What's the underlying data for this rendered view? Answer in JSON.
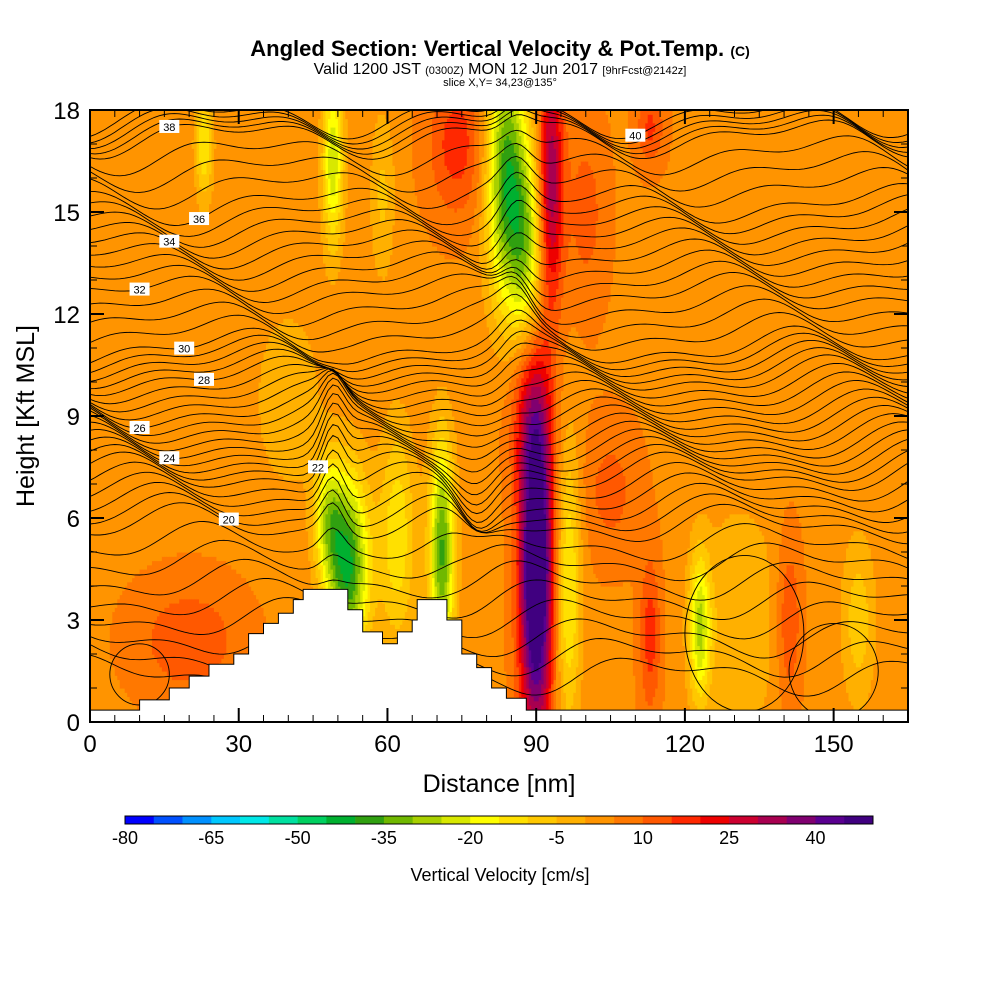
{
  "title": {
    "main": "Angled Section: Vertical Velocity & Pot.Temp.",
    "tag": "(C)",
    "valid": "Valid 1200 JST",
    "zulu": "(0300Z)",
    "date": "MON 12 Jun 2017",
    "fcst": "[9hrFcst@2142z]",
    "slice": "slice X,Y= 34,23@135°"
  },
  "chart_data": {
    "type": "heatmap",
    "xlabel": "Distance [nm]",
    "ylabel": "Height [Kft MSL]",
    "xlim": [
      0,
      165
    ],
    "ylim": [
      0,
      18
    ],
    "xticks": [
      0,
      30,
      60,
      90,
      120,
      150
    ],
    "yticks": [
      0,
      3,
      6,
      9,
      12,
      15,
      18
    ],
    "colorbar": {
      "label": "Vertical Velocity [cm/s]",
      "min": -80,
      "max": 50,
      "step": 5,
      "tick_labels": [
        -80,
        -65,
        -50,
        -35,
        -20,
        -5,
        10,
        25,
        40
      ],
      "colors": [
        "#0000ff",
        "#0050ff",
        "#0090ff",
        "#00c8ff",
        "#00e8e8",
        "#00e0a0",
        "#00d060",
        "#00b030",
        "#30a010",
        "#70b800",
        "#a8d000",
        "#d8e800",
        "#ffff00",
        "#ffe000",
        "#ffc800",
        "#ffb000",
        "#ff9400",
        "#ff7800",
        "#ff5800",
        "#ff2800",
        "#ee0000",
        "#cc0030",
        "#a80050",
        "#800070",
        "#5a0090",
        "#400080"
      ]
    },
    "w_features": [
      {
        "x": 90,
        "y": 4.5,
        "sx": 2.3,
        "sy": 3.4,
        "w": 60
      },
      {
        "x": 89,
        "y": 9.0,
        "sx": 3.0,
        "sy": 1.5,
        "w": 14
      },
      {
        "x": 96.5,
        "y": 4.0,
        "sx": 1.8,
        "sy": 3.0,
        "w": -20
      },
      {
        "x": 52,
        "y": 4.6,
        "sx": 3.0,
        "sy": 1.9,
        "w": -45
      },
      {
        "x": 48,
        "y": 6.0,
        "sx": 2.0,
        "sy": 1.2,
        "w": -22
      },
      {
        "x": 62,
        "y": 5.5,
        "sx": 2.6,
        "sy": 2.3,
        "w": -18
      },
      {
        "x": 71,
        "y": 5.0,
        "sx": 1.8,
        "sy": 2.3,
        "w": -40
      },
      {
        "x": 84,
        "y": 16.0,
        "sx": 2.8,
        "sy": 2.6,
        "w": -42
      },
      {
        "x": 88,
        "y": 14.0,
        "sx": 2.3,
        "sy": 2.0,
        "w": -26
      },
      {
        "x": 93,
        "y": 16.0,
        "sx": 1.7,
        "sy": 2.6,
        "w": 30
      },
      {
        "x": 49,
        "y": 16.5,
        "sx": 1.5,
        "sy": 1.8,
        "w": -28
      },
      {
        "x": 59,
        "y": 15.5,
        "sx": 1.8,
        "sy": 1.8,
        "w": -10
      },
      {
        "x": 23,
        "y": 17.0,
        "sx": 1.3,
        "sy": 1.2,
        "w": -18
      },
      {
        "x": 74,
        "y": 17.0,
        "sx": 4.0,
        "sy": 1.5,
        "w": 14
      },
      {
        "x": 113,
        "y": 17.5,
        "sx": 2.0,
        "sy": 0.8,
        "w": 12
      },
      {
        "x": 20,
        "y": 2.4,
        "sx": 7.5,
        "sy": 1.2,
        "w": 10
      },
      {
        "x": 113,
        "y": 2.6,
        "sx": 1.5,
        "sy": 1.6,
        "w": 14
      },
      {
        "x": 123,
        "y": 2.8,
        "sx": 1.5,
        "sy": 1.5,
        "w": -28
      },
      {
        "x": 131,
        "y": 3.0,
        "sx": 6.0,
        "sy": 2.5,
        "w": -9
      },
      {
        "x": 141,
        "y": 3.0,
        "sx": 1.8,
        "sy": 1.8,
        "w": 12
      },
      {
        "x": 155,
        "y": 3.0,
        "sx": 2.5,
        "sy": 1.8,
        "w": -12
      },
      {
        "x": 40,
        "y": 9.5,
        "sx": 5.0,
        "sy": 2.0,
        "w": -8
      },
      {
        "x": 105,
        "y": 6.8,
        "sx": 4.0,
        "sy": 1.4,
        "w": 8
      },
      {
        "x": 100,
        "y": 15.0,
        "sx": 3.0,
        "sy": 2.0,
        "w": 8
      }
    ],
    "theta_contours": [
      {
        "value": 20,
        "label_x": 28,
        "base": 6.1
      },
      {
        "value": 22,
        "label_x": 46,
        "base": 7.3
      },
      {
        "value": 24,
        "label_x": 16,
        "base": 8.2
      },
      {
        "value": 26,
        "label_x": 10,
        "base": 9.15
      },
      {
        "value": 28,
        "label_x": 23,
        "base": 10.15
      },
      {
        "value": 30,
        "label_x": 19,
        "base": 11.0
      },
      {
        "value": 32,
        "label_x": 10,
        "base": 12.6
      },
      {
        "value": 34,
        "label_x": 16,
        "base": 13.95
      },
      {
        "value": 36,
        "label_x": 22,
        "base": 15.25
      },
      {
        "value": 38,
        "label_x": 16,
        "base": 17.2
      },
      {
        "value": 40,
        "label_x": 110,
        "base": 17.8
      }
    ],
    "terrain": [
      [
        0,
        0.35
      ],
      [
        10,
        0.35
      ],
      [
        10,
        0.65
      ],
      [
        16,
        0.65
      ],
      [
        16,
        1.0
      ],
      [
        20,
        1.0
      ],
      [
        20,
        1.35
      ],
      [
        24,
        1.35
      ],
      [
        24,
        1.7
      ],
      [
        29,
        1.7
      ],
      [
        29,
        2.0
      ],
      [
        32,
        2.0
      ],
      [
        32,
        2.6
      ],
      [
        35,
        2.6
      ],
      [
        35,
        2.9
      ],
      [
        38,
        2.9
      ],
      [
        38,
        3.2
      ],
      [
        41,
        3.2
      ],
      [
        41,
        3.6
      ],
      [
        43,
        3.6
      ],
      [
        43,
        3.9
      ],
      [
        52,
        3.9
      ],
      [
        52,
        3.3
      ],
      [
        55,
        3.3
      ],
      [
        55,
        2.65
      ],
      [
        59,
        2.65
      ],
      [
        59,
        2.3
      ],
      [
        62,
        2.3
      ],
      [
        62,
        2.65
      ],
      [
        65,
        2.65
      ],
      [
        65,
        3.0
      ],
      [
        66,
        3.0
      ],
      [
        66,
        3.6
      ],
      [
        72,
        3.6
      ],
      [
        72,
        3.0
      ],
      [
        75,
        3.0
      ],
      [
        75,
        2.0
      ],
      [
        78,
        2.0
      ],
      [
        78,
        1.6
      ],
      [
        81,
        1.6
      ],
      [
        81,
        1.0
      ],
      [
        84,
        1.0
      ],
      [
        84,
        0.7
      ],
      [
        88,
        0.7
      ],
      [
        88,
        0.35
      ],
      [
        165,
        0.35
      ]
    ]
  }
}
